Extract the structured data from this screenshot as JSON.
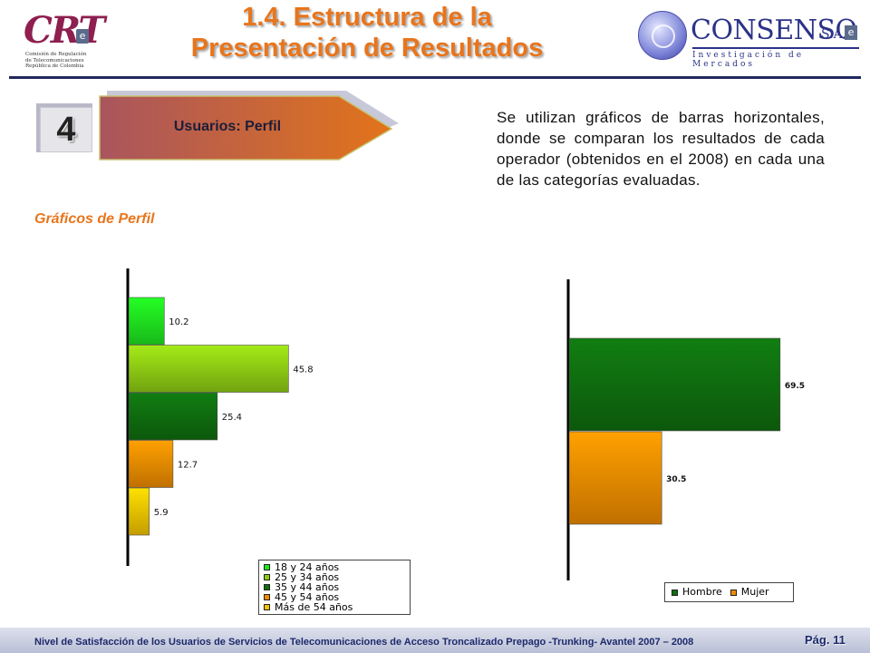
{
  "header": {
    "title_line1": "1.4. Estructura de la",
    "title_line2": "Presentación de Resultados",
    "crt_logo": {
      "mark": "CRT",
      "badge": "e",
      "subtitle_line1": "Comisión de Regulación",
      "subtitle_line2": "de Telecomunicaciones",
      "subtitle_line3": "República de Colombia"
    },
    "consenso_logo": {
      "name": "CONSENSO",
      "suffix": "S.A.",
      "badge": "e",
      "tagline": "Investigación de Mercados"
    }
  },
  "section": {
    "number": "4",
    "label": "Usuarios: Perfil",
    "subtitle": "Gráficos de Perfil"
  },
  "description": "Se utilizan gráficos de barras horizontales, donde se comparan los resultados de cada operador (obtenidos en el 2008) en cada una de las categorías evaluadas.",
  "colors": {
    "accent_orange": "#e8751c",
    "navy": "#22285e",
    "bar_light_green": "#1fe61f",
    "bar_olive_green": "#8fcc14",
    "bar_dark_green": "#0f6e0f",
    "bar_orange": "#f08c00",
    "bar_yellow": "#f5c400"
  },
  "chart_data": [
    {
      "type": "bar",
      "orientation": "horizontal",
      "categories": [
        "18 y 24 años",
        "25 y 34 años",
        "35 y 44 años",
        "45 y 54 años",
        "Más de 54 años"
      ],
      "values": [
        10.2,
        45.8,
        25.4,
        12.7,
        5.9
      ],
      "value_labels": [
        "10.2",
        "45.8",
        "25.4",
        "12.7",
        "5.9"
      ],
      "colors": [
        "#1fe61f",
        "#8fcc14",
        "#0f6e0f",
        "#f08c00",
        "#f5c400"
      ],
      "xlim": [
        0,
        100
      ],
      "legend": [
        "18 y 24 años",
        "25 y 34 años",
        "35 y 44 años",
        "45 y 54 años",
        "Más de 54 años"
      ],
      "legend_position": "bottom-right",
      "grid": false
    },
    {
      "type": "bar",
      "orientation": "horizontal",
      "categories": [
        "Hombre",
        "Mujer"
      ],
      "values": [
        69.5,
        30.5
      ],
      "value_labels": [
        "69.5",
        "30.5"
      ],
      "colors": [
        "#0f6e0f",
        "#f08c00"
      ],
      "xlim": [
        0,
        100
      ],
      "legend": [
        "Hombre",
        "Mujer"
      ],
      "legend_position": "bottom-right",
      "grid": false
    }
  ],
  "footer": {
    "text": "Nivel de Satisfacción de los Usuarios de Servicios de Telecomunicaciones de Acceso Troncalizado Prepago -Trunking- Avantel 2007 – 2008",
    "page": "Pág. 11"
  }
}
